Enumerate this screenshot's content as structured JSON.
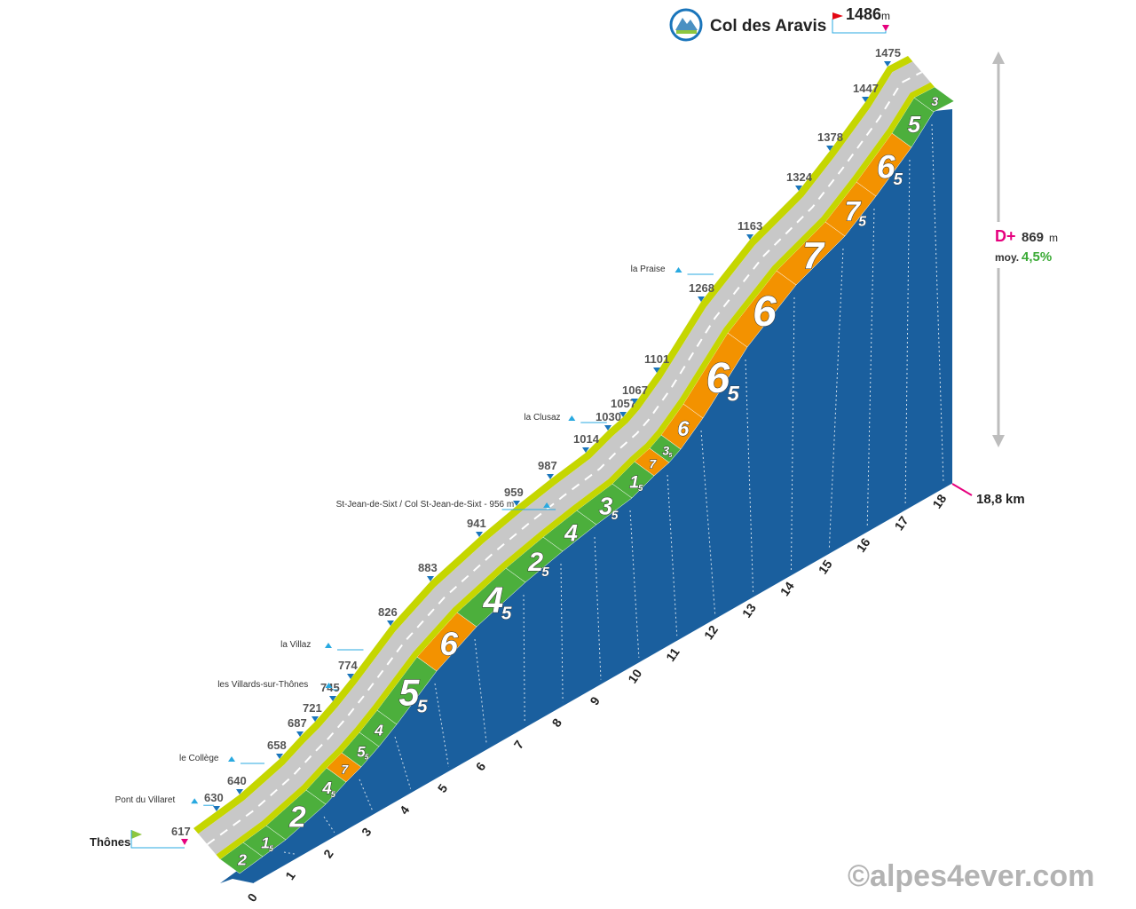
{
  "chart_data": {
    "type": "area",
    "summit": {
      "name": "Col des Aravis",
      "altitude": "1486",
      "unit": "m"
    },
    "start": {
      "name": "Thônes",
      "altitude": "617"
    },
    "stats": {
      "dplus_label": "D+",
      "dplus_value": "869",
      "dplus_unit": "m",
      "avg_label": "moy.",
      "avg_value": "4,5%"
    },
    "total_distance": "18,8",
    "total_unit": "km",
    "copyright": "©alpes4ever.com",
    "km_labels": [
      "0",
      "1",
      "2",
      "3",
      "4",
      "5",
      "6",
      "7",
      "8",
      "9",
      "10",
      "11",
      "12",
      "13",
      "14",
      "15",
      "16",
      "17",
      "18"
    ],
    "gradients": [
      {
        "km": 0,
        "int": "2",
        "dec": ""
      },
      {
        "km": 0.5,
        "int": "1",
        "dec": "5"
      },
      {
        "km": 1,
        "int": "2",
        "dec": ""
      },
      {
        "km": 2,
        "int": "4",
        "dec": "5"
      },
      {
        "km": 2.5,
        "int": "7",
        "dec": ""
      },
      {
        "km": 3,
        "int": "5",
        "dec": "5"
      },
      {
        "km": 3.5,
        "int": "4",
        "dec": ""
      },
      {
        "km": 4,
        "int": "5",
        "dec": "5"
      },
      {
        "km": 5,
        "int": "6",
        "dec": ""
      },
      {
        "km": 6,
        "int": "4",
        "dec": "5"
      },
      {
        "km": 7,
        "int": "2",
        "dec": "5"
      },
      {
        "km": 8,
        "int": "4",
        "dec": ""
      },
      {
        "km": 9,
        "int": "3",
        "dec": "5"
      },
      {
        "km": 10,
        "int": "1",
        "dec": "5"
      },
      {
        "km": 10.5,
        "int": "7",
        "dec": ""
      },
      {
        "km": 11,
        "int": "3",
        "dec": "5"
      },
      {
        "km": 11.5,
        "int": "6",
        "dec": ""
      },
      {
        "km": 12,
        "int": "6",
        "dec": "5"
      },
      {
        "km": 13,
        "int": "6",
        "dec": ""
      },
      {
        "km": 14,
        "int": "7",
        "dec": ""
      },
      {
        "km": 15,
        "int": "7",
        "dec": "5"
      },
      {
        "km": 16,
        "int": "6",
        "dec": "5"
      },
      {
        "km": 17,
        "int": "5",
        "dec": ""
      },
      {
        "km": 18,
        "int": "3",
        "dec": ""
      }
    ],
    "altitude_points": [
      {
        "km": 0,
        "alt": 617
      },
      {
        "km": 0.5,
        "alt": 630
      },
      {
        "km": 1,
        "alt": 640
      },
      {
        "km": 2,
        "alt": 658
      },
      {
        "km": 2.5,
        "alt": 687
      },
      {
        "km": 3,
        "alt": 721
      },
      {
        "km": 3.5,
        "alt": 745
      },
      {
        "km": 4,
        "alt": 774
      },
      {
        "km": 5,
        "alt": 826
      },
      {
        "km": 6,
        "alt": 883
      },
      {
        "km": 7,
        "alt": 941
      },
      {
        "km": 8,
        "alt": 959
      },
      {
        "km": 9,
        "alt": 987
      },
      {
        "km": 10,
        "alt": 1014
      },
      {
        "km": 10.5,
        "alt": 1030
      },
      {
        "km": 11,
        "alt": 1057
      },
      {
        "km": 11.5,
        "alt": 1067
      },
      {
        "km": 12,
        "alt": 1101
      },
      {
        "km": 13,
        "alt": 1268
      },
      {
        "km": 14,
        "alt": 1163
      },
      {
        "km": 15,
        "alt": 1324
      },
      {
        "km": 16,
        "alt": 1378
      },
      {
        "km": 17,
        "alt": 1447
      },
      {
        "km": 18,
        "alt": 1475
      }
    ],
    "altitude_labels": [
      "617",
      "630",
      "640",
      "658",
      "687",
      "721",
      "745",
      "774",
      "826",
      "883",
      "941",
      "959",
      "987",
      "1014",
      "1030",
      "1057",
      "1067",
      "1101",
      "1268",
      "1163",
      "1324",
      "1378",
      "1447",
      "1475"
    ],
    "places": [
      {
        "name": "Pont du Villaret",
        "icon": "bridge-icon"
      },
      {
        "name": "le Collège",
        "icon": "village-icon"
      },
      {
        "name": "les Villards-sur-Thônes",
        "icon": "church-icon"
      },
      {
        "name": "la Villaz",
        "icon": "village-icon"
      },
      {
        "name": "St-Jean-de-Sixt / Col St-Jean-de-Sixt - 956 m",
        "icon": "church-icon"
      },
      {
        "name": "la Clusaz",
        "icon": "cable-car-icon"
      },
      {
        "name": "la Praise",
        "icon": "village-icon"
      }
    ],
    "colors": {
      "road": "#c8c8c8",
      "verge": "#c5d600",
      "base": "#1a5f9e",
      "green": "#4caf3c",
      "orange": "#f39200",
      "magenta": "#e6007e",
      "marker": "#1a75bb",
      "connector": "#29a9e0",
      "start_flag": "#8dc63f",
      "summit_flag": "#e30613"
    }
  }
}
